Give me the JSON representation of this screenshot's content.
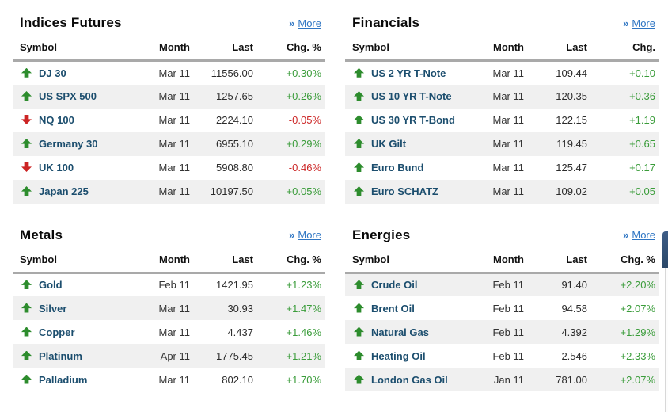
{
  "colors": {
    "positive": "#3a9c3a",
    "negative": "#cc2626",
    "link": "#2e75c3",
    "symbol_link": "#1c4e6e",
    "stripe": "#f0f0f0",
    "header_rule": "#a9a9a9"
  },
  "sections": [
    {
      "id": "indices-futures",
      "title": "Indices Futures",
      "more_label": "More",
      "more_icon": "»",
      "columns": {
        "symbol": "Symbol",
        "month": "Month",
        "last": "Last",
        "change": "Chg. %"
      },
      "first_row_shaded": false,
      "rows": [
        {
          "direction": "up",
          "symbol": "DJ 30",
          "month": "Mar 11",
          "last": "11556.00",
          "change": "+0.30%"
        },
        {
          "direction": "up",
          "symbol": "US SPX 500",
          "month": "Mar 11",
          "last": "1257.65",
          "change": "+0.26%"
        },
        {
          "direction": "down",
          "symbol": "NQ 100",
          "month": "Mar 11",
          "last": "2224.10",
          "change": "-0.05%"
        },
        {
          "direction": "up",
          "symbol": "Germany 30",
          "month": "Mar 11",
          "last": "6955.10",
          "change": "+0.29%"
        },
        {
          "direction": "down",
          "symbol": "UK 100",
          "month": "Mar 11",
          "last": "5908.80",
          "change": "-0.46%"
        },
        {
          "direction": "up",
          "symbol": "Japan 225",
          "month": "Mar 11",
          "last": "10197.50",
          "change": "+0.05%"
        }
      ]
    },
    {
      "id": "financials",
      "title": "Financials",
      "more_label": "More",
      "more_icon": "»",
      "columns": {
        "symbol": "Symbol",
        "month": "Month",
        "last": "Last",
        "change": "Chg."
      },
      "first_row_shaded": false,
      "rows": [
        {
          "direction": "up",
          "symbol": "US 2 YR T-Note",
          "month": "Mar 11",
          "last": "109.44",
          "change": "+0.10"
        },
        {
          "direction": "up",
          "symbol": "US 10 YR T-Note",
          "month": "Mar 11",
          "last": "120.35",
          "change": "+0.36"
        },
        {
          "direction": "up",
          "symbol": "US 30 YR T-Bond",
          "month": "Mar 11",
          "last": "122.15",
          "change": "+1.19"
        },
        {
          "direction": "up",
          "symbol": "UK Gilt",
          "month": "Mar 11",
          "last": "119.45",
          "change": "+0.65"
        },
        {
          "direction": "up",
          "symbol": "Euro Bund",
          "month": "Mar 11",
          "last": "125.47",
          "change": "+0.17"
        },
        {
          "direction": "up",
          "symbol": "Euro SCHATZ",
          "month": "Mar 11",
          "last": "109.02",
          "change": "+0.05"
        }
      ]
    },
    {
      "id": "metals",
      "title": "Metals",
      "more_label": "More",
      "more_icon": "»",
      "columns": {
        "symbol": "Symbol",
        "month": "Month",
        "last": "Last",
        "change": "Chg. %"
      },
      "first_row_shaded": false,
      "rows": [
        {
          "direction": "up",
          "symbol": "Gold",
          "month": "Feb 11",
          "last": "1421.95",
          "change": "+1.23%"
        },
        {
          "direction": "up",
          "symbol": "Silver",
          "month": "Mar 11",
          "last": "30.93",
          "change": "+1.47%"
        },
        {
          "direction": "up",
          "symbol": "Copper",
          "month": "Mar 11",
          "last": "4.437",
          "change": "+1.46%"
        },
        {
          "direction": "up",
          "symbol": "Platinum",
          "month": "Apr 11",
          "last": "1775.45",
          "change": "+1.21%"
        },
        {
          "direction": "up",
          "symbol": "Palladium",
          "month": "Mar 11",
          "last": "802.10",
          "change": "+1.70%"
        }
      ]
    },
    {
      "id": "energies",
      "title": "Energies",
      "more_label": "More",
      "more_icon": "»",
      "columns": {
        "symbol": "Symbol",
        "month": "Month",
        "last": "Last",
        "change": "Chg. %"
      },
      "first_row_shaded": true,
      "rows": [
        {
          "direction": "up",
          "symbol": "Crude Oil",
          "month": "Feb 11",
          "last": "91.40",
          "change": "+2.20%"
        },
        {
          "direction": "up",
          "symbol": "Brent Oil",
          "month": "Feb 11",
          "last": "94.58",
          "change": "+2.07%"
        },
        {
          "direction": "up",
          "symbol": "Natural Gas",
          "month": "Feb 11",
          "last": "4.392",
          "change": "+1.29%"
        },
        {
          "direction": "up",
          "symbol": "Heating Oil",
          "month": "Feb 11",
          "last": "2.546",
          "change": "+2.33%"
        },
        {
          "direction": "up",
          "symbol": "London Gas Oil",
          "month": "Jan 11",
          "last": "781.00",
          "change": "+2.07%"
        }
      ]
    }
  ]
}
